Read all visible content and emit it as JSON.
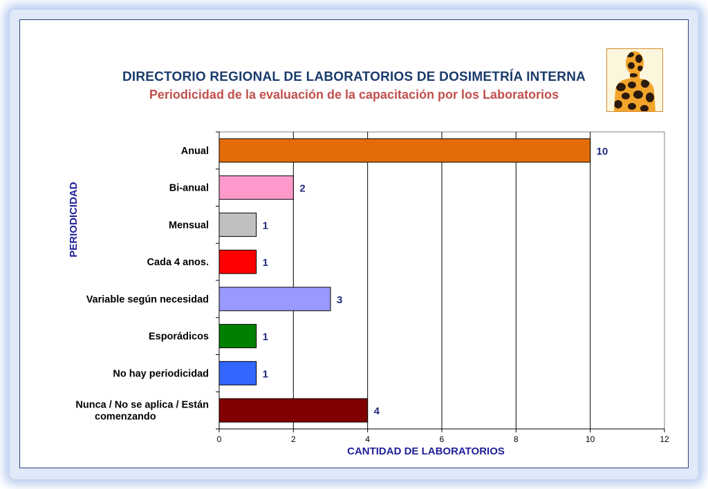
{
  "title": "DIRECTORIO REGIONAL DE LABORATORIOS  DE DOSIMETRÍA INTERNA",
  "subtitle": "Periodicidad de la evaluación de la capacitación por los Laboratorios",
  "logo": {
    "icon": "human-silhouette-icon",
    "colors": {
      "fill": "#f2a52a",
      "spots": "#2b1a0e",
      "background": "#fbf6dc"
    }
  },
  "chart_data": {
    "type": "bar",
    "orientation": "horizontal",
    "categories": [
      "Anual",
      "Bi-anual",
      "Mensual",
      "Cada 4 anos.",
      "Variable según necesidad",
      "Esporádicos",
      "No hay periodicidad",
      "Nunca / No se aplica / Están comenzando"
    ],
    "values": [
      10,
      2,
      1,
      1,
      3,
      1,
      1,
      4
    ],
    "bar_labels": [
      "10",
      "2",
      "1",
      "1",
      "3",
      "1",
      "1",
      "4"
    ],
    "colors": [
      "#e36c09",
      "#ff99cc",
      "#c0c0c0",
      "#ff0000",
      "#9999ff",
      "#008000",
      "#3366ff",
      "#800000"
    ],
    "xlabel": "CANTIDAD DE LABORATORIOS",
    "ylabel": "PERIODICIDAD",
    "xlim": [
      0,
      12
    ],
    "xticks": [
      "0",
      "2",
      "4",
      "6",
      "8",
      "10",
      "12"
    ],
    "grid": "vertical",
    "legend": "none"
  }
}
